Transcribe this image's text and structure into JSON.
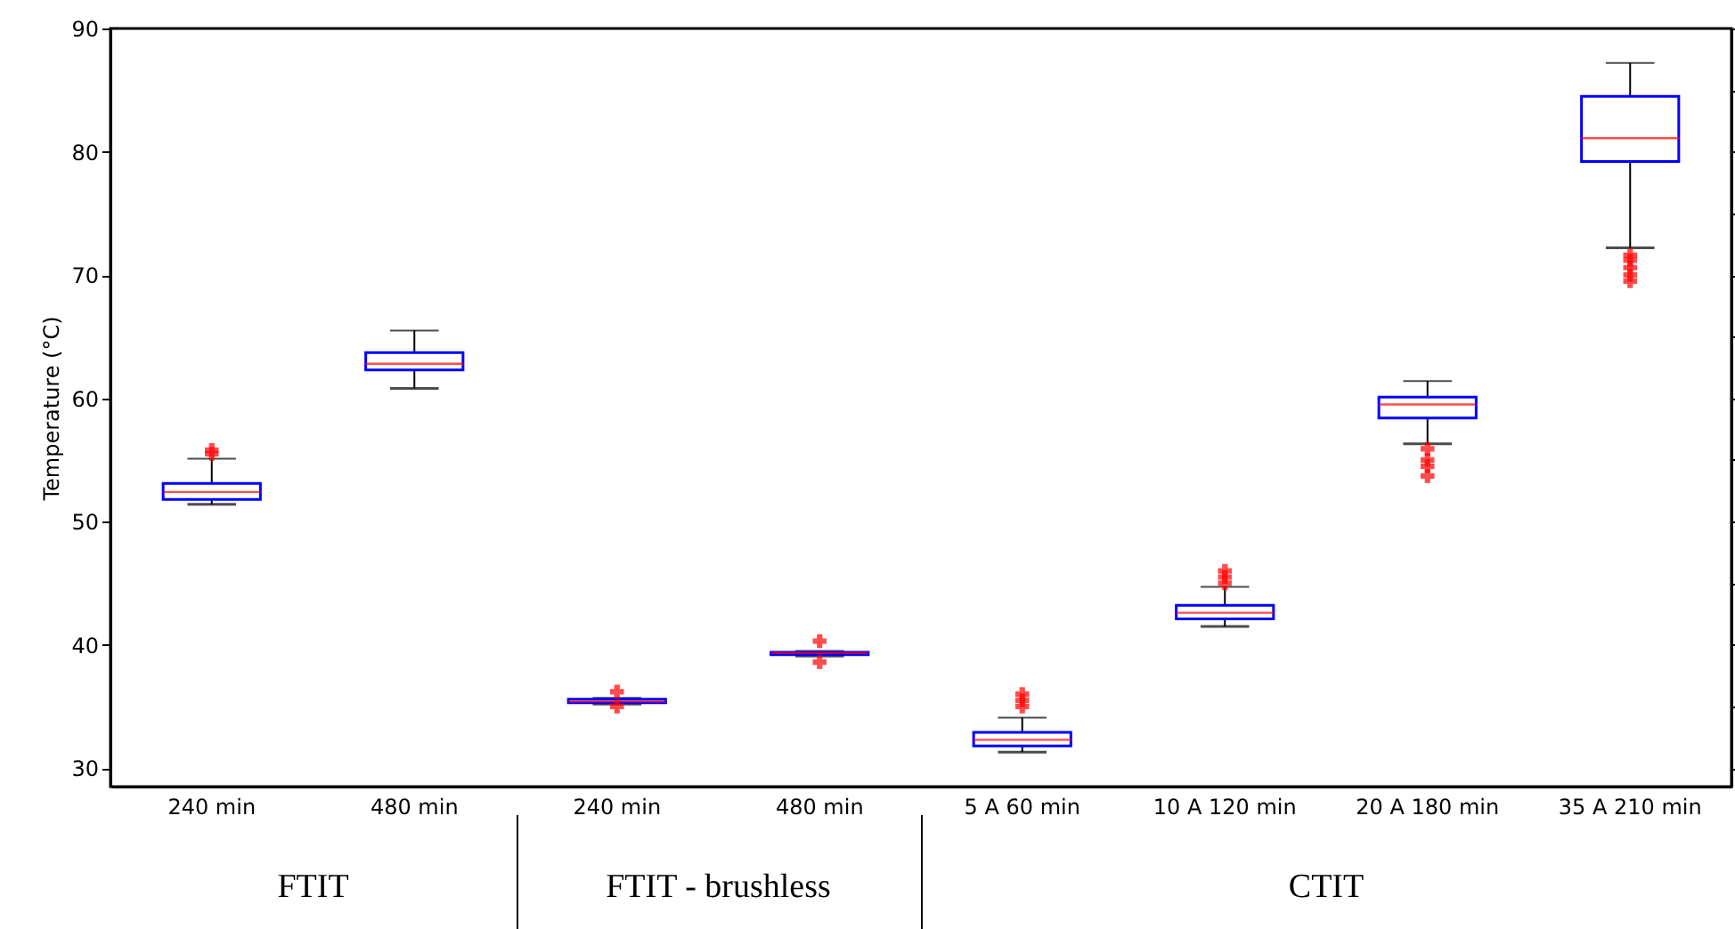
{
  "chart_data": {
    "type": "box",
    "ylabel": "Temperature (°C)",
    "categories": [
      "240 min",
      "480 min",
      "240 min",
      "480 min",
      "5 A 60 min",
      "10 A 120 min",
      "20 A 180 min",
      "35 A 210 min"
    ],
    "annotations": [
      "FTIT",
      "FTIT - brushless",
      "CTIT"
    ],
    "ylim": [
      28.5,
      90
    ],
    "yticks": [
      30,
      40,
      50,
      60,
      70,
      80,
      90
    ],
    "grid": false,
    "marker": "cross",
    "series": [
      {
        "color": "#0000ff",
        "boxes": [
          {
            "low": 51.4,
            "q1": 51.8,
            "median": 52.4,
            "q3": 53.1,
            "high": 55.1,
            "outliers": [
              55.5,
              55.8
            ]
          },
          {
            "low": 60.8,
            "q1": 62.3,
            "median": 62.8,
            "q3": 63.7,
            "high": 65.5
          },
          {
            "low": 35.2,
            "q1": 35.3,
            "median": 35.4,
            "q3": 35.6,
            "high": 35.7,
            "outliers": [
              36.2,
              35.0
            ]
          },
          {
            "low": 39.1,
            "q1": 39.2,
            "median": 39.35,
            "q3": 39.4,
            "high": 39.5,
            "outliers": [
              40.3,
              38.6
            ]
          },
          {
            "low": 31.3,
            "q1": 31.8,
            "median": 32.3,
            "q3": 32.9,
            "high": 34.1,
            "outliers": [
              35.0,
              35.5,
              36.0
            ]
          },
          {
            "low": 41.5,
            "q1": 42.1,
            "median": 42.6,
            "q3": 43.2,
            "high": 44.7,
            "outliers": [
              45.0,
              45.5,
              46.0
            ]
          },
          {
            "low": 56.3,
            "q1": 58.4,
            "median": 59.5,
            "q3": 60.1,
            "high": 61.4,
            "outliers": [
              55.9,
              55.0,
              54.5,
              53.7
            ]
          },
          {
            "low": 72.2,
            "q1": 79.2,
            "median": 81.1,
            "q3": 84.5,
            "high": 87.2,
            "outliers": [
              71.6,
              71.2,
              70.6,
              70.0,
              69.5
            ]
          }
        ]
      }
    ]
  }
}
